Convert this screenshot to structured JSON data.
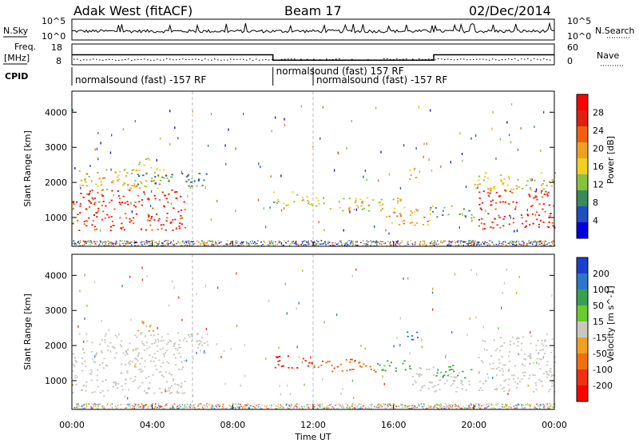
{
  "header": {
    "station": "Adak West (fitACF)",
    "beam": "Beam 17",
    "date": "02/Dec/2014"
  },
  "top_panels": {
    "nsky_label": "N.Sky",
    "nsky_ticks": [
      "10^5",
      "10^0"
    ],
    "nsearch_label": "N.Search",
    "nsearch_ticks": [
      "10^5",
      "10^0"
    ],
    "freq_label": "Freq.",
    "freq_unit": "[MHz]",
    "freq_ticks": [
      "18",
      "8"
    ],
    "nave_label": "Nave",
    "nave_ticks": [
      "60",
      "0"
    ],
    "cpid_label": "CPID",
    "cpid_segments": [
      {
        "label": "normalsound (fast) -157 RF",
        "start": 0,
        "end": 10
      },
      {
        "label": "normalsound (fast) 157 RF",
        "start": 10,
        "end": 12
      },
      {
        "label": "normalsound (fast) -157 RF",
        "start": 12,
        "end": 24
      }
    ]
  },
  "axes": {
    "x_ticks": [
      "00:00",
      "04:00",
      "08:00",
      "12:00",
      "16:00",
      "20:00",
      "00:00"
    ],
    "x_label": "Time UT",
    "y_label": "Slant Range [km]",
    "y_ticks": [
      "1000",
      "2000",
      "3000",
      "4000"
    ]
  },
  "power_scale": {
    "label": "Power [dB]",
    "ticks": [
      "28",
      "24",
      "20",
      "16",
      "12",
      "8",
      "4"
    ],
    "colors": [
      "#0000dd",
      "#1f4fbf",
      "#3a8a5a",
      "#88c040",
      "#f0d020",
      "#f0a020",
      "#f06010",
      "#e02010",
      "#ff0000"
    ]
  },
  "velocity_scale": {
    "label": "Velocity [m s^-1]",
    "ticks": [
      "200",
      "100",
      "50",
      "15",
      "-15",
      "-50",
      "-100",
      "-200"
    ],
    "colors": [
      "#1a3fcc",
      "#2a78c8",
      "#3aa050",
      "#6acc30",
      "#c8c8c0",
      "#f0a020",
      "#f07010",
      "#f03010",
      "#ff0000"
    ]
  },
  "chart_data": [
    {
      "type": "line",
      "panel": "frequency",
      "series": [
        {
          "name": "Freq.",
          "x": [
            0,
            10,
            10,
            18,
            18,
            24
          ],
          "y": [
            12.8,
            12.8,
            10.2,
            10.2,
            12.8,
            12.8
          ]
        }
      ],
      "xlim": [
        0,
        24
      ],
      "ylim": [
        8,
        18
      ]
    },
    {
      "type": "heatmap",
      "panel": "power",
      "xlim": [
        0,
        24
      ],
      "ylim": [
        180,
        4600
      ],
      "colorbar": {
        "label": "Power [dB]",
        "ticks": [
          4,
          8,
          12,
          16,
          20,
          24,
          28
        ]
      },
      "regions": [
        {
          "t0": 0.0,
          "t1": 5.6,
          "r0": 650,
          "r1": 1800,
          "level": 26
        },
        {
          "t0": 0.2,
          "t1": 4.8,
          "r0": 1800,
          "r1": 2400,
          "level": 18
        },
        {
          "t0": 3.0,
          "t1": 6.8,
          "r0": 1900,
          "r1": 2300,
          "level": 10
        },
        {
          "t0": 3.2,
          "t1": 4.2,
          "r0": 2400,
          "r1": 2700,
          "level": 16
        },
        {
          "t0": 10.0,
          "t1": 12.0,
          "r0": 1350,
          "r1": 1750,
          "level": 14
        },
        {
          "t0": 12.0,
          "t1": 16.5,
          "r0": 1200,
          "r1": 1600,
          "level": 16
        },
        {
          "t0": 15.5,
          "t1": 17.8,
          "r0": 800,
          "r1": 1300,
          "level": 20
        },
        {
          "t0": 17.8,
          "t1": 20.0,
          "r0": 1000,
          "r1": 1350,
          "level": 12
        },
        {
          "t0": 16.6,
          "t1": 17.3,
          "r0": 2100,
          "r1": 2500,
          "level": 18
        },
        {
          "t0": 20.2,
          "t1": 24.0,
          "r0": 700,
          "r1": 1800,
          "level": 26
        },
        {
          "t0": 20.0,
          "t1": 24.0,
          "r0": 1800,
          "r1": 2300,
          "level": 16
        }
      ]
    },
    {
      "type": "heatmap",
      "panel": "velocity",
      "xlim": [
        0,
        24
      ],
      "ylim": [
        180,
        4600
      ],
      "colorbar": {
        "label": "Velocity [m s^-1]",
        "ticks": [
          -200,
          -100,
          -50,
          -15,
          15,
          50,
          100,
          200
        ]
      },
      "regions": [
        {
          "t0": 0.0,
          "t1": 5.6,
          "r0": 650,
          "r1": 1800,
          "level": 0
        },
        {
          "t0": 0.2,
          "t1": 6.8,
          "r0": 1800,
          "r1": 2400,
          "level": 0
        },
        {
          "t0": 3.2,
          "t1": 4.2,
          "r0": 2400,
          "r1": 2700,
          "level": -40
        },
        {
          "t0": 10.0,
          "t1": 12.0,
          "r0": 1350,
          "r1": 1750,
          "level": -200
        },
        {
          "t0": 12.0,
          "t1": 15.0,
          "r0": 1250,
          "r1": 1650,
          "level": -90
        },
        {
          "t0": 15.0,
          "t1": 16.8,
          "r0": 1250,
          "r1": 1600,
          "level": 60
        },
        {
          "t0": 16.8,
          "t1": 19.8,
          "r0": 700,
          "r1": 1400,
          "level": 0
        },
        {
          "t0": 18.0,
          "t1": 20.0,
          "r0": 1100,
          "r1": 1450,
          "level": 60
        },
        {
          "t0": 16.6,
          "t1": 17.3,
          "r0": 2100,
          "r1": 2500,
          "level": 150
        },
        {
          "t0": 20.2,
          "t1": 24.0,
          "r0": 700,
          "r1": 2300,
          "level": 0
        }
      ]
    }
  ]
}
